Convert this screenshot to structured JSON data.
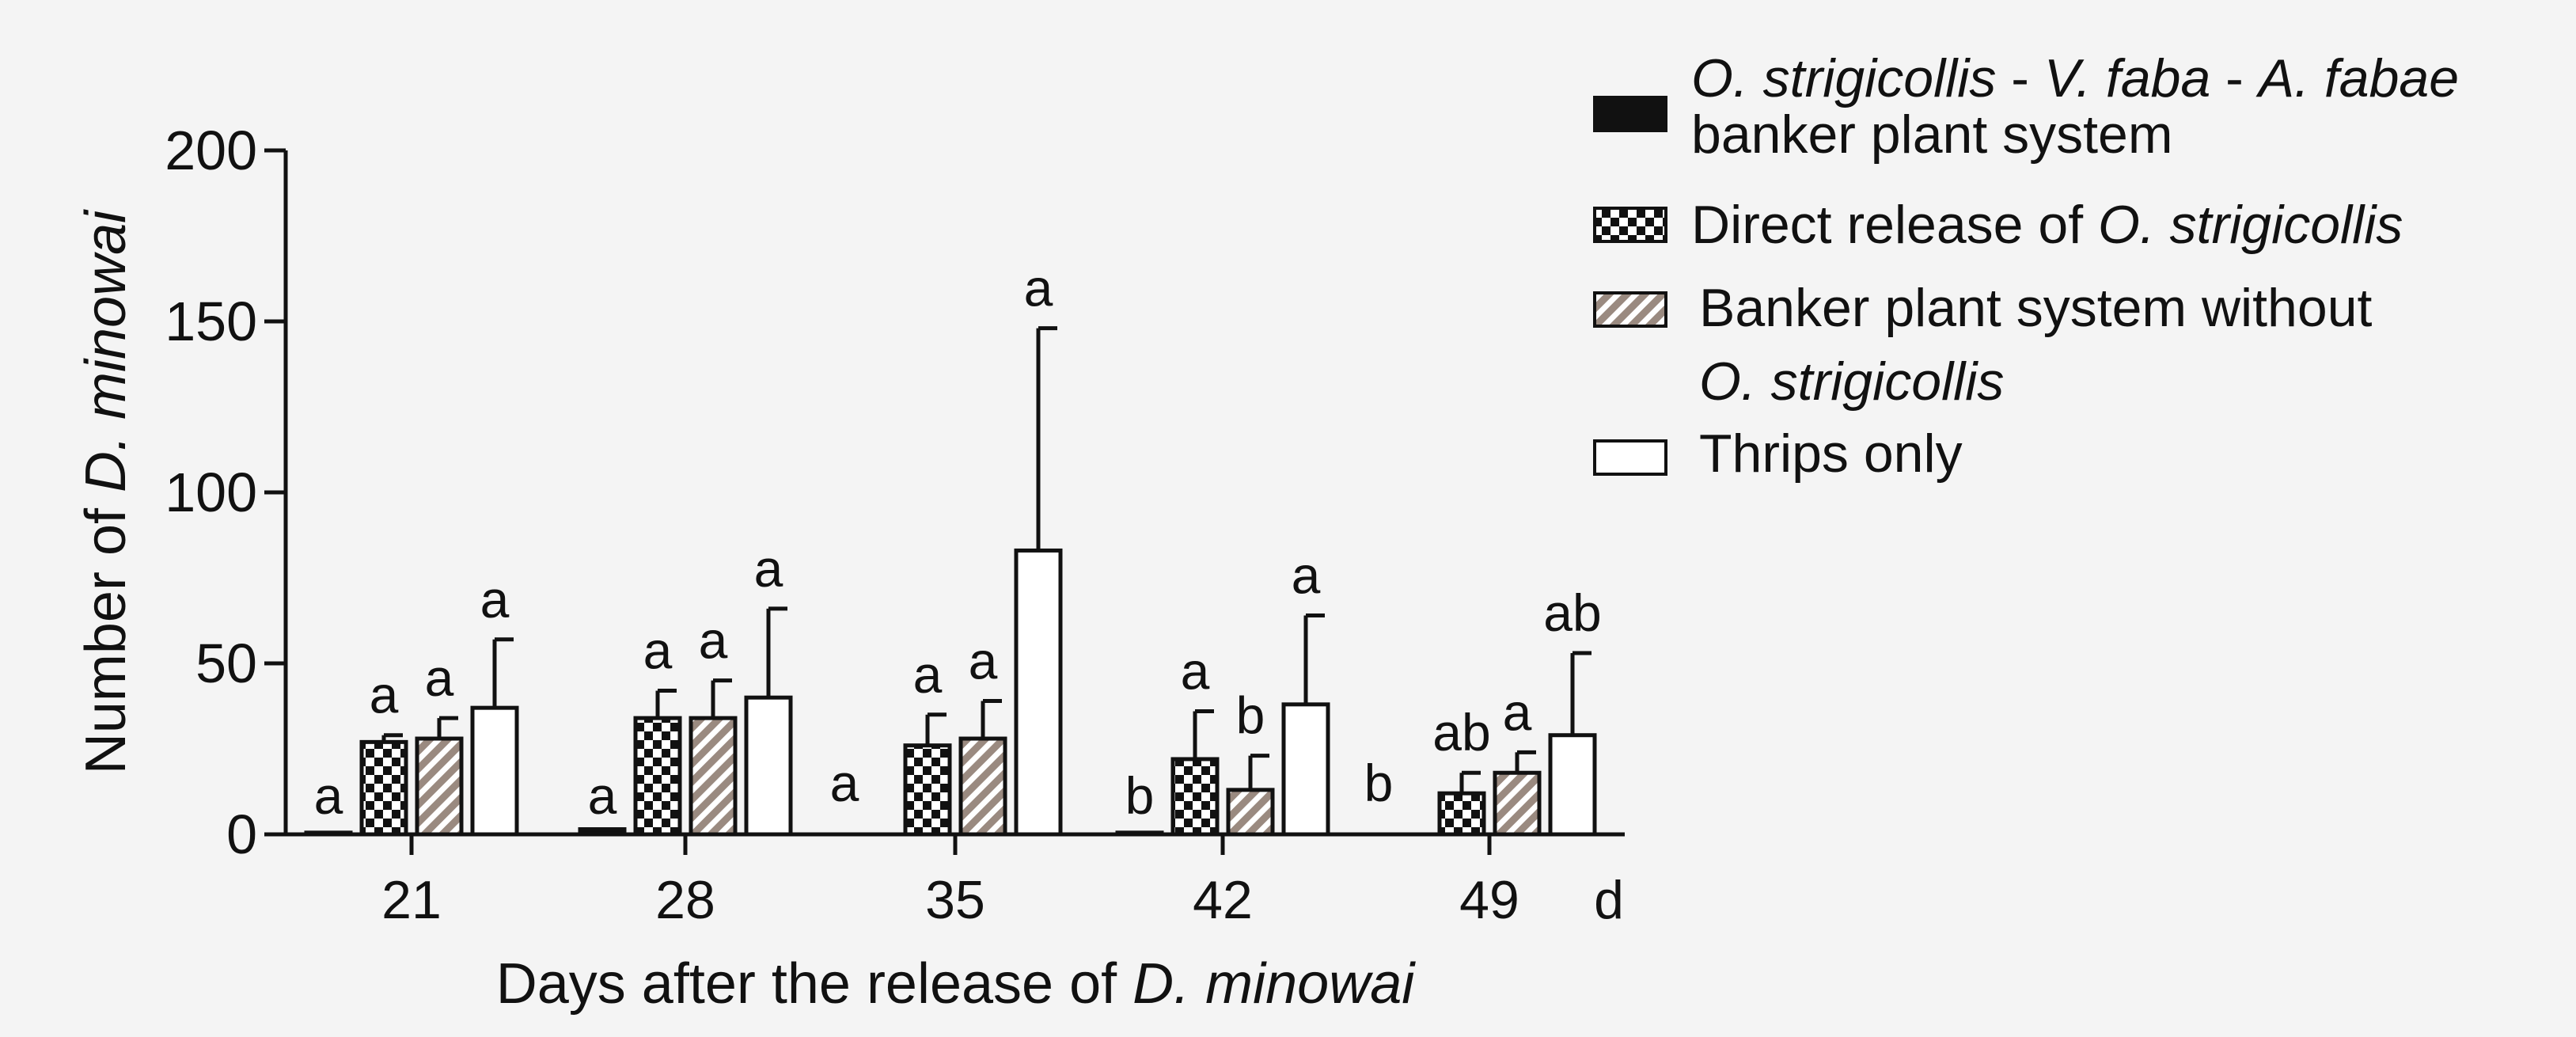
{
  "chart_data": {
    "type": "bar",
    "ylabel_prefix": "Number of ",
    "ylabel_italic": "D. minowai",
    "xlabel_prefix": "Days after the release of ",
    "xlabel_italic": "D. minowai",
    "x_unit": "d",
    "ylim": [
      0,
      200
    ],
    "yticks": [
      "0",
      "50",
      "100",
      "150",
      "200"
    ],
    "categories": [
      "21",
      "28",
      "35",
      "42",
      "49"
    ],
    "series": [
      {
        "name": "O. strigicollis - V. faba - A. fabae banker plant system",
        "pattern": "solid",
        "values": [
          0.5,
          1.5,
          0,
          0.5,
          0
        ],
        "errors": [
          0,
          0,
          0,
          0,
          0
        ],
        "letters": [
          "a",
          "a",
          "a",
          "b",
          "b"
        ]
      },
      {
        "name": "Direct release of O. strigicollis",
        "pattern": "checker",
        "values": [
          27,
          34,
          26,
          22,
          12
        ],
        "errors": [
          2,
          8,
          9,
          14,
          6
        ],
        "letters": [
          "a",
          "a",
          "a",
          "a",
          "ab"
        ]
      },
      {
        "name": "Banker plant system without O. strigicollis",
        "pattern": "hatch",
        "values": [
          28,
          34,
          28,
          13,
          18
        ],
        "errors": [
          6,
          11,
          11,
          10,
          6
        ],
        "letters": [
          "a",
          "a",
          "a",
          "b",
          "a"
        ]
      },
      {
        "name": "Thrips only",
        "pattern": "open",
        "values": [
          37,
          40,
          83,
          38,
          29
        ],
        "errors": [
          20,
          26,
          65,
          26,
          24
        ],
        "letters": [
          "a",
          "a",
          "a",
          "a",
          "ab"
        ]
      }
    ],
    "legend": [
      {
        "line1_italic": "O. strigicollis",
        "line1_mid": " - ",
        "line1_italic2": "V. faba",
        "line1_mid2": " - ",
        "line1_italic3": "A. fabae",
        "line2": "banker plant system"
      },
      {
        "text": "Direct release of ",
        "italic": "O. strigicollis"
      },
      {
        "line1": "Banker plant system without",
        "line2_italic": "O. strigicollis"
      },
      {
        "text": "Thrips only"
      }
    ]
  }
}
